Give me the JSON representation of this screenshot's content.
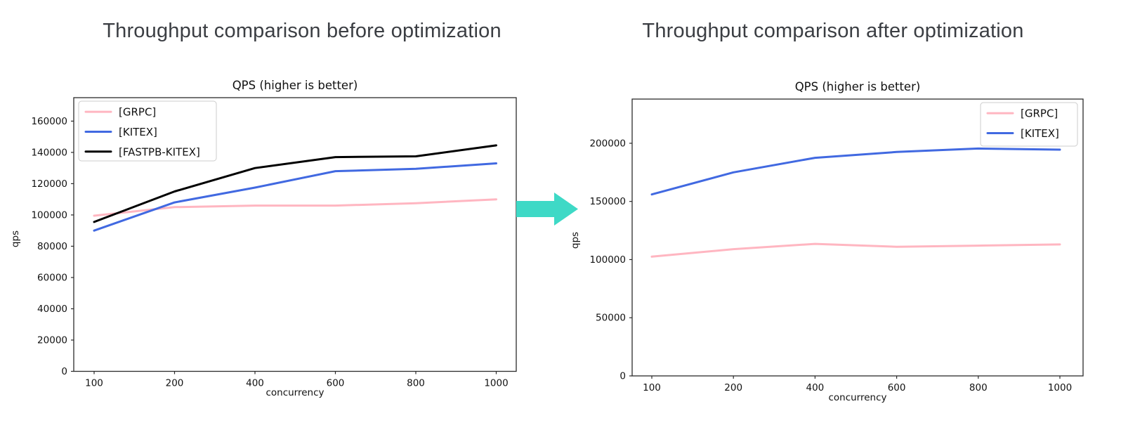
{
  "page": {
    "background": "#ffffff"
  },
  "left_figure": {
    "heading": "Throughput comparison before optimization"
  },
  "right_figure": {
    "heading": "Throughput comparison after optimization"
  },
  "arrow": {
    "name": "right-arrow",
    "color": "#3ed9c6"
  },
  "chart_data": [
    {
      "type": "line",
      "title": "QPS (higher is better)",
      "xlabel": "concurrency",
      "ylabel": "qps",
      "categories": [
        100,
        200,
        400,
        600,
        800,
        1000
      ],
      "series": [
        {
          "name": "[GRPC]",
          "color": "#ffb6c1",
          "values": [
            99500,
            105000,
            106000,
            106000,
            107500,
            110000
          ]
        },
        {
          "name": "[KITEX]",
          "color": "#4169e1",
          "values": [
            90000,
            108000,
            117500,
            128000,
            129500,
            133000
          ]
        },
        {
          "name": "[FASTPB-KITEX]",
          "color": "#000000",
          "values": [
            95500,
            115000,
            130000,
            137000,
            137500,
            144500
          ]
        }
      ],
      "yticks": [
        0,
        20000,
        40000,
        60000,
        80000,
        100000,
        120000,
        140000,
        160000
      ],
      "ylim": [
        0,
        175000
      ],
      "grid": false,
      "legend_position": "upper-left"
    },
    {
      "type": "line",
      "title": "QPS (higher is better)",
      "xlabel": "concurrency",
      "ylabel": "qps",
      "categories": [
        100,
        200,
        400,
        600,
        800,
        1000
      ],
      "series": [
        {
          "name": "[GRPC]",
          "color": "#ffb6c1",
          "values": [
            102500,
            109000,
            113500,
            111000,
            112000,
            113000
          ]
        },
        {
          "name": "[KITEX]",
          "color": "#4169e1",
          "values": [
            156000,
            175000,
            187500,
            192500,
            195500,
            194500
          ]
        }
      ],
      "yticks": [
        0,
        50000,
        100000,
        150000,
        200000
      ],
      "ylim": [
        0,
        238000
      ],
      "grid": false,
      "legend_position": "upper-right"
    }
  ]
}
